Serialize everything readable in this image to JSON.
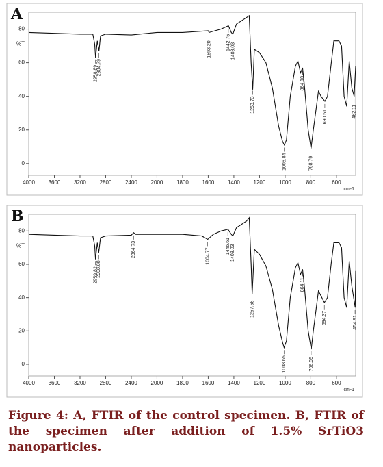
{
  "chart_data": [
    {
      "type": "line",
      "panel_label": "A",
      "y_axis_label": "%T",
      "x_axis_label": "cm-1",
      "color": "#111111",
      "xlim": [
        4000,
        450
      ],
      "x_scale_break": 2000,
      "ylim": [
        -7,
        90
      ],
      "xticks": [
        4000,
        3600,
        3200,
        2800,
        2400,
        2000,
        1800,
        1600,
        1400,
        1200,
        1000,
        800,
        600
      ],
      "yticks": [
        0,
        20,
        40,
        60,
        80
      ],
      "x": [
        4000,
        3600,
        3200,
        3000,
        2970,
        2958,
        2930,
        2904,
        2880,
        2800,
        2400,
        2000,
        1800,
        1600,
        1593,
        1500,
        1442,
        1420,
        1408,
        1380,
        1300,
        1280,
        1265,
        1253,
        1240,
        1200,
        1150,
        1100,
        1050,
        1020,
        1006,
        990,
        960,
        920,
        900,
        880,
        864,
        850,
        820,
        798,
        780,
        740,
        720,
        690,
        670,
        640,
        620,
        580,
        560,
        540,
        520,
        500,
        480,
        462,
        450
      ],
      "values": [
        78,
        77.5,
        77,
        77,
        71,
        63,
        73,
        67,
        76,
        77,
        76.5,
        78,
        78,
        79,
        78,
        80,
        82,
        78,
        77,
        83,
        87,
        88,
        60,
        44,
        68,
        66,
        60,
        45,
        22,
        13,
        11,
        14,
        40,
        58,
        61,
        54,
        57,
        47,
        20,
        9,
        20,
        43,
        40,
        37,
        40,
        60,
        73,
        73,
        70,
        40,
        34,
        61,
        45,
        40,
        58
      ],
      "annotations": [
        "2958.89",
        "2904.79",
        "1593.20",
        "1442.75",
        "1408.03",
        "1253.73",
        "1006.84",
        "864.10",
        "798.79",
        "690.51",
        "462.11"
      ]
    },
    {
      "type": "line",
      "panel_label": "B",
      "y_axis_label": "%T",
      "x_axis_label": "cm-1",
      "color": "#111111",
      "xlim": [
        4000,
        450
      ],
      "x_scale_break": 2000,
      "ylim": [
        -7,
        90
      ],
      "xticks": [
        4000,
        3600,
        3200,
        2800,
        2400,
        2000,
        1800,
        1600,
        1400,
        1200,
        1000,
        800,
        600
      ],
      "yticks": [
        0,
        20,
        40,
        60,
        80
      ],
      "x": [
        4000,
        3600,
        3200,
        3000,
        2970,
        2959,
        2930,
        2908,
        2880,
        2800,
        2400,
        2364,
        2330,
        2000,
        1800,
        1650,
        1604,
        1560,
        1500,
        1446,
        1420,
        1408,
        1380,
        1300,
        1280,
        1265,
        1257,
        1240,
        1200,
        1150,
        1100,
        1050,
        1020,
        1008,
        990,
        960,
        920,
        900,
        880,
        864,
        850,
        820,
        796,
        780,
        740,
        720,
        694,
        670,
        640,
        620,
        580,
        560,
        540,
        520,
        500,
        480,
        454,
        450
      ],
      "values": [
        78,
        77.5,
        77,
        77,
        71,
        63,
        73,
        67,
        76,
        77,
        77.5,
        79,
        78,
        78,
        78,
        77,
        75,
        78,
        80,
        81,
        78,
        77,
        82,
        86,
        88,
        60,
        42,
        69,
        66,
        59,
        45,
        23,
        13,
        10,
        14,
        40,
        58,
        61,
        54,
        57,
        47,
        20,
        9,
        20,
        44,
        41,
        37,
        40,
        61,
        73,
        73,
        70,
        40,
        34,
        62,
        47,
        34,
        56
      ],
      "annotations": [
        "2959.82",
        "2908.88",
        "2364.73",
        "1604.77",
        "1446.61",
        "1408.03",
        "1257.58",
        "1008.65",
        "864.11",
        "796.95",
        "694.37",
        "454.91"
      ]
    }
  ],
  "caption": "Figure 4: A, FTIR of the control specimen. B, FTIR of the specimen after addition of 1.5% SrTiO3 nanoparticles."
}
